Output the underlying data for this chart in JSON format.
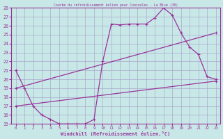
{
  "title": "Courbe du refroidissement éolien pour Concoules - La Bise (30)",
  "xlabel": "Windchill (Refroidissement éolien,°C)",
  "background_color": "#c8e8e8",
  "grid_color": "#aaaacc",
  "line_color": "#993399",
  "xlim": [
    -0.5,
    23.5
  ],
  "ylim": [
    15,
    28
  ],
  "yticks": [
    15,
    16,
    17,
    18,
    19,
    20,
    21,
    22,
    23,
    24,
    25,
    26,
    27,
    28
  ],
  "xticks": [
    0,
    1,
    2,
    3,
    4,
    5,
    6,
    7,
    8,
    9,
    10,
    11,
    12,
    13,
    14,
    15,
    16,
    17,
    18,
    19,
    20,
    21,
    22,
    23
  ],
  "curve1_x": [
    0,
    1,
    2,
    3,
    4,
    5,
    6,
    7,
    8,
    9,
    10,
    11,
    12,
    13,
    14,
    15,
    16,
    17,
    18,
    19,
    20,
    21,
    22,
    23
  ],
  "curve1_y": [
    21,
    19,
    17,
    16,
    15.5,
    15,
    15,
    15,
    15,
    15.5,
    22,
    26.2,
    26.1,
    26.2,
    26.2,
    26.2,
    26.9,
    28,
    27.2,
    25.2,
    23.6,
    22.8,
    20.3,
    20
  ],
  "curve2_x": [
    0,
    23
  ],
  "curve2_y": [
    19.0,
    25.2
  ],
  "curve3_x": [
    0,
    23
  ],
  "curve3_y": [
    17.0,
    19.8
  ]
}
